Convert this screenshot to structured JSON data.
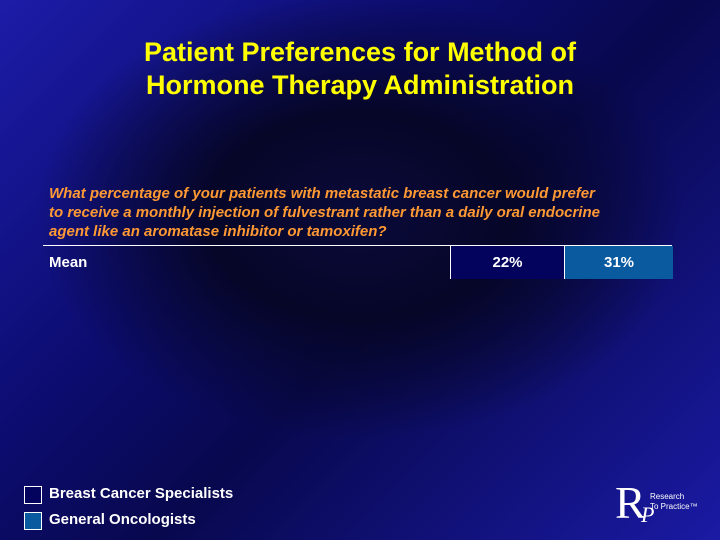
{
  "title": {
    "line1": "Patient Preferences for Method of",
    "line2": "Hormone Therapy Administration"
  },
  "question": {
    "line1": "What percentage of your patients with metastatic breast cancer would prefer",
    "line2": "to receive a monthly injection of fulvestrant rather than a daily oral endocrine",
    "line3": "agent like an aromatase inhibitor or tamoxifen?"
  },
  "table": {
    "row_label": "Mean",
    "breast_cancer_specialists": "22%",
    "general_oncologists": "31%"
  },
  "legend": {
    "items": [
      {
        "label": "Breast Cancer Specialists",
        "color": "#03035e"
      },
      {
        "label": "General Oncologists",
        "color": "#0a5aa0"
      }
    ]
  },
  "logo": {
    "mark_r": "R",
    "mark_p": "P",
    "line1": "Research",
    "line2": "To Practice™"
  },
  "colors": {
    "title": "#ffff00",
    "question": "#ff9933",
    "text": "#ffffff"
  }
}
